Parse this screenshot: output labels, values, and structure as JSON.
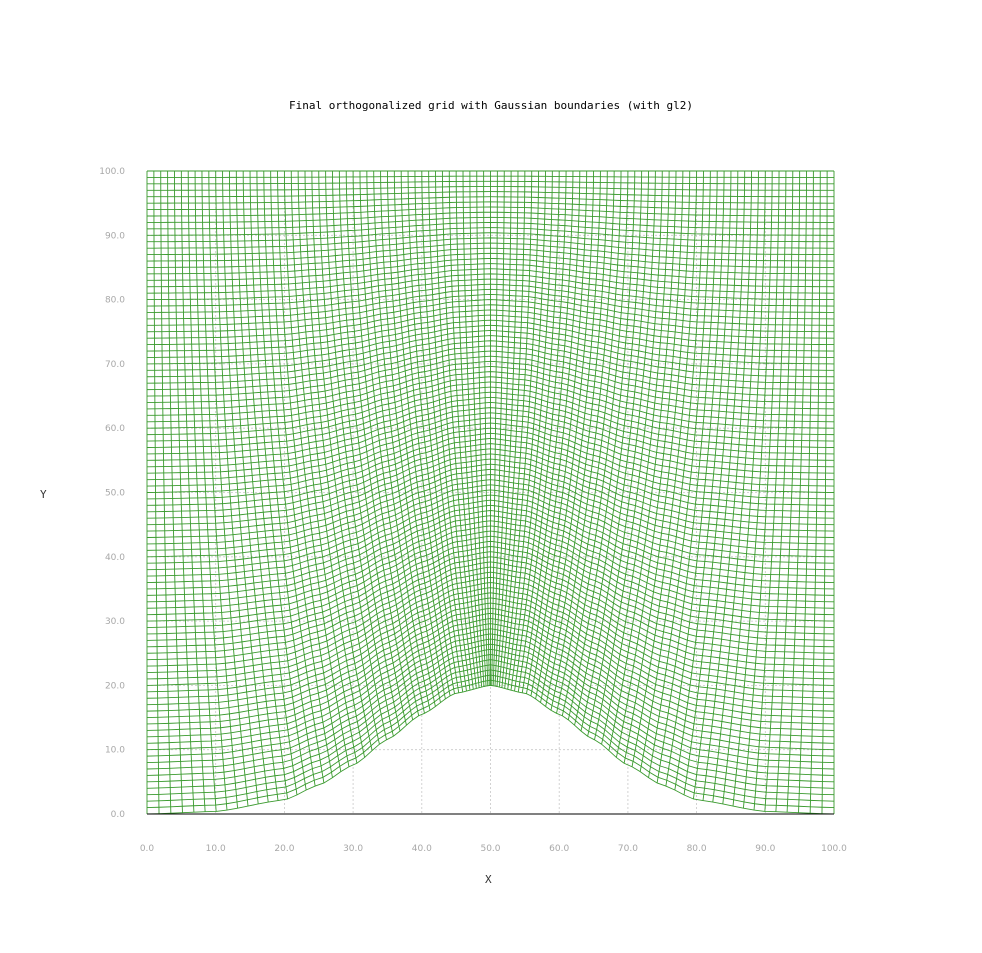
{
  "chart_data": {
    "type": "line",
    "title": "Final orthogonalized grid with Gaussian boundaries (with gl2)",
    "xlabel": "X",
    "ylabel": "Y",
    "xlim": [
      0,
      100
    ],
    "ylim": [
      0,
      100
    ],
    "xticks": [
      "0.0",
      "10.0",
      "20.0",
      "30.0",
      "40.0",
      "50.0",
      "60.0",
      "70.0",
      "80.0",
      "90.0",
      "100.0"
    ],
    "yticks": [
      "0.0",
      "10.0",
      "20.0",
      "30.0",
      "40.0",
      "50.0",
      "60.0",
      "70.0",
      "80.0",
      "90.0",
      "100.0"
    ],
    "grid": true,
    "mesh_color": "#3a9a2e",
    "bottom_boundary": {
      "x": [
        0,
        10,
        20,
        25,
        30,
        35,
        40,
        45,
        50,
        55,
        60,
        65,
        70,
        75,
        80,
        90,
        100
      ],
      "y": [
        0.0,
        0.4,
        2.2,
        4.5,
        7.6,
        11.6,
        15.5,
        18.8,
        20.0,
        18.8,
        15.5,
        11.6,
        7.6,
        4.5,
        2.2,
        0.4,
        0.0
      ]
    },
    "top_boundary": {
      "x": [
        0,
        100
      ],
      "y": [
        100,
        100
      ]
    },
    "grid_lines_x": 100,
    "grid_lines_y": 100
  }
}
